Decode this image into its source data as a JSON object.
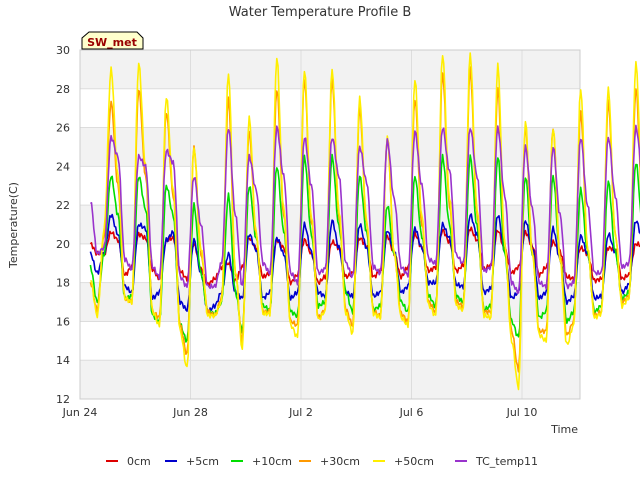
{
  "chart_data": {
    "type": "line",
    "title": "Water Temperature Profile B",
    "xlabel": "Time",
    "ylabel": "Temperature(C)",
    "ylim": [
      12,
      30
    ],
    "yticks": [
      12,
      14,
      16,
      18,
      20,
      22,
      24,
      26,
      28,
      30
    ],
    "xlim": [
      "2023-06-24",
      "2023-07-12"
    ],
    "xticks": [
      {
        "x": "2023-06-24",
        "label": "Jun 24"
      },
      {
        "x": "2023-06-28",
        "label": "Jun 28"
      },
      {
        "x": "2023-07-02",
        "label": "Jul 2"
      },
      {
        "x": "2023-07-06",
        "label": "Jul 6"
      },
      {
        "x": "2023-07-10",
        "label": "Jul 10"
      }
    ],
    "grid": true,
    "legend_position": "bottom",
    "annotation": "SW_met",
    "data_start": "2023-06-24 09:00",
    "sample_hours": 6,
    "series": [
      {
        "name": "0cm",
        "color": "#dd0000",
        "values": [
          20.0,
          19.5,
          19.5,
          20.6,
          20.2,
          18.4,
          18.8,
          20.5,
          20.3,
          18.7,
          18.2,
          20.2,
          20.3,
          18.6,
          18.2,
          20.0,
          18.7,
          17.9,
          18.2,
          18.8,
          19.0,
          18.1,
          18.8,
          20.3,
          19.8,
          18.3,
          18.5,
          20.2,
          19.8,
          18.0,
          18.4,
          20.2,
          19.5,
          18.0,
          18.3,
          20.1,
          19.8,
          18.3,
          18.5,
          20.3,
          19.9,
          18.3,
          18.6,
          20.4,
          19.5,
          18.3,
          18.8,
          20.5,
          19.8,
          18.6,
          18.8,
          20.7,
          20.1,
          18.6,
          18.9,
          20.8,
          20.2,
          18.7,
          18.9,
          20.7,
          19.7,
          18.5,
          18.8,
          20.6,
          19.9,
          18.4,
          18.8,
          20.1,
          19.6,
          18.3,
          18.2,
          19.8,
          19.5,
          18.1,
          18.2,
          19.8,
          19.7,
          18.2,
          18.4,
          20.0,
          19.9,
          18.5,
          19.0,
          20.5,
          19.6
        ]
      },
      {
        "name": "+5cm",
        "color": "#0000cc",
        "values": [
          19.5,
          18.5,
          19.5,
          21.5,
          20.5,
          17.8,
          17.5,
          21.0,
          20.8,
          17.2,
          17.5,
          20.2,
          20.6,
          17.0,
          16.6,
          20.2,
          18.5,
          16.5,
          16.8,
          17.5,
          19.5,
          17.5,
          17.2,
          20.5,
          19.7,
          17.2,
          17.5,
          20.3,
          19.5,
          17.2,
          17.5,
          21.0,
          19.6,
          17.5,
          17.3,
          21.2,
          19.8,
          17.5,
          17.3,
          21.0,
          19.8,
          17.3,
          17.5,
          20.7,
          19.6,
          17.5,
          17.8,
          20.8,
          19.8,
          18.0,
          18.0,
          21.0,
          20.3,
          17.9,
          17.8,
          21.5,
          20.5,
          17.5,
          17.7,
          21.5,
          19.6,
          17.2,
          17.5,
          21.2,
          19.8,
          17.2,
          17.5,
          20.8,
          19.2,
          17.0,
          17.3,
          20.4,
          19.5,
          17.2,
          17.3,
          20.5,
          19.6,
          17.5,
          17.9,
          21.2,
          20.2,
          18.0,
          18.2,
          21.4,
          19.3
        ]
      },
      {
        "name": "+10cm",
        "color": "#00dd00",
        "values": [
          18.8,
          17.0,
          19.5,
          23.5,
          21.5,
          17.2,
          17.3,
          23.5,
          21.8,
          16.3,
          16.0,
          23.0,
          21.5,
          15.8,
          15.0,
          22.0,
          18.5,
          16.5,
          16.4,
          17.0,
          22.5,
          17.5,
          15.5,
          23.0,
          20.3,
          16.8,
          16.6,
          24.0,
          20.7,
          16.5,
          16.3,
          24.5,
          20.5,
          16.8,
          17.0,
          24.5,
          20.9,
          17.5,
          16.5,
          23.5,
          20.6,
          16.6,
          16.8,
          22.0,
          19.5,
          17.0,
          16.5,
          23.5,
          20.4,
          17.3,
          16.8,
          24.5,
          21.0,
          17.3,
          17.0,
          24.5,
          20.9,
          16.6,
          16.8,
          24.5,
          19.5,
          16.0,
          15.2,
          23.5,
          19.5,
          16.2,
          16.5,
          23.5,
          19.4,
          16.0,
          16.5,
          22.8,
          19.6,
          16.5,
          16.8,
          23.2,
          19.6,
          17.2,
          17.5,
          24.2,
          20.8,
          17.6,
          17.8,
          23.5,
          19.7
        ]
      },
      {
        "name": "+30cm",
        "color": "#ff9900",
        "values": [
          18.0,
          16.6,
          20.5,
          27.3,
          23.0,
          17.2,
          17.0,
          28.0,
          23.5,
          16.5,
          16.2,
          26.8,
          22.5,
          15.8,
          14.3,
          25.0,
          19.5,
          16.5,
          16.3,
          17.2,
          27.5,
          18.5,
          15.0,
          25.8,
          20.5,
          16.5,
          16.5,
          28.0,
          21.5,
          16.0,
          15.8,
          28.5,
          21.2,
          16.2,
          16.6,
          28.5,
          21.4,
          16.6,
          15.8,
          27.0,
          21.0,
          16.5,
          16.3,
          25.5,
          19.5,
          16.4,
          16.0,
          27.5,
          21.0,
          17.0,
          16.5,
          28.8,
          22.0,
          17.0,
          16.8,
          29.0,
          21.5,
          16.5,
          16.5,
          28.0,
          20.0,
          15.5,
          13.5,
          26.0,
          19.5,
          15.5,
          15.5,
          26.0,
          19.4,
          15.3,
          16.0,
          26.8,
          19.8,
          16.3,
          16.5,
          27.3,
          20.5,
          17.0,
          17.3,
          28.0,
          21.5,
          17.5,
          17.5,
          26.5,
          19.5
        ]
      },
      {
        "name": "+50cm",
        "color": "#ffee00",
        "values": [
          18.2,
          16.3,
          20.8,
          29.0,
          23.5,
          17.2,
          17.0,
          29.3,
          24.0,
          16.5,
          15.8,
          27.6,
          22.8,
          15.5,
          13.6,
          25.0,
          19.8,
          16.3,
          16.3,
          17.0,
          28.8,
          18.6,
          14.6,
          26.5,
          20.6,
          16.4,
          16.4,
          29.6,
          21.8,
          15.8,
          15.2,
          29.0,
          21.4,
          16.1,
          16.5,
          29.0,
          21.7,
          16.4,
          15.4,
          27.5,
          21.2,
          16.4,
          16.2,
          25.5,
          19.5,
          16.2,
          15.8,
          28.5,
          21.4,
          16.8,
          16.3,
          29.8,
          22.4,
          16.8,
          16.6,
          29.8,
          21.8,
          16.3,
          16.2,
          29.2,
          20.0,
          15.0,
          12.6,
          26.3,
          19.5,
          15.3,
          15.0,
          26.0,
          19.2,
          14.8,
          15.8,
          28.0,
          19.8,
          16.2,
          16.4,
          28.0,
          20.5,
          16.8,
          17.2,
          29.3,
          21.8,
          17.3,
          17.3,
          27.5,
          19.3
        ]
      },
      {
        "name": "TC_temp11",
        "color": "#9933cc",
        "values": [
          22.2,
          19.5,
          19.8,
          25.5,
          24.5,
          19.2,
          18.7,
          24.5,
          24.0,
          18.8,
          18.3,
          24.8,
          24.2,
          18.3,
          17.8,
          23.5,
          21.0,
          17.8,
          17.8,
          19.0,
          26.0,
          21.5,
          17.8,
          24.5,
          22.8,
          19.0,
          18.5,
          26.0,
          23.5,
          18.5,
          18.0,
          25.5,
          23.0,
          18.5,
          18.7,
          25.5,
          23.5,
          19.0,
          18.3,
          25.0,
          23.2,
          18.8,
          18.5,
          25.3,
          22.3,
          18.8,
          18.4,
          25.8,
          23.0,
          19.2,
          19.0,
          26.0,
          23.8,
          19.4,
          19.0,
          26.0,
          23.5,
          18.6,
          18.8,
          26.0,
          22.5,
          18.0,
          17.5,
          25.0,
          21.8,
          18.0,
          17.8,
          25.0,
          21.5,
          17.8,
          18.0,
          25.5,
          22.0,
          18.5,
          18.5,
          25.5,
          22.5,
          18.8,
          19.0,
          26.0,
          23.5,
          19.0,
          19.2,
          25.5,
          21.2
        ]
      }
    ]
  }
}
